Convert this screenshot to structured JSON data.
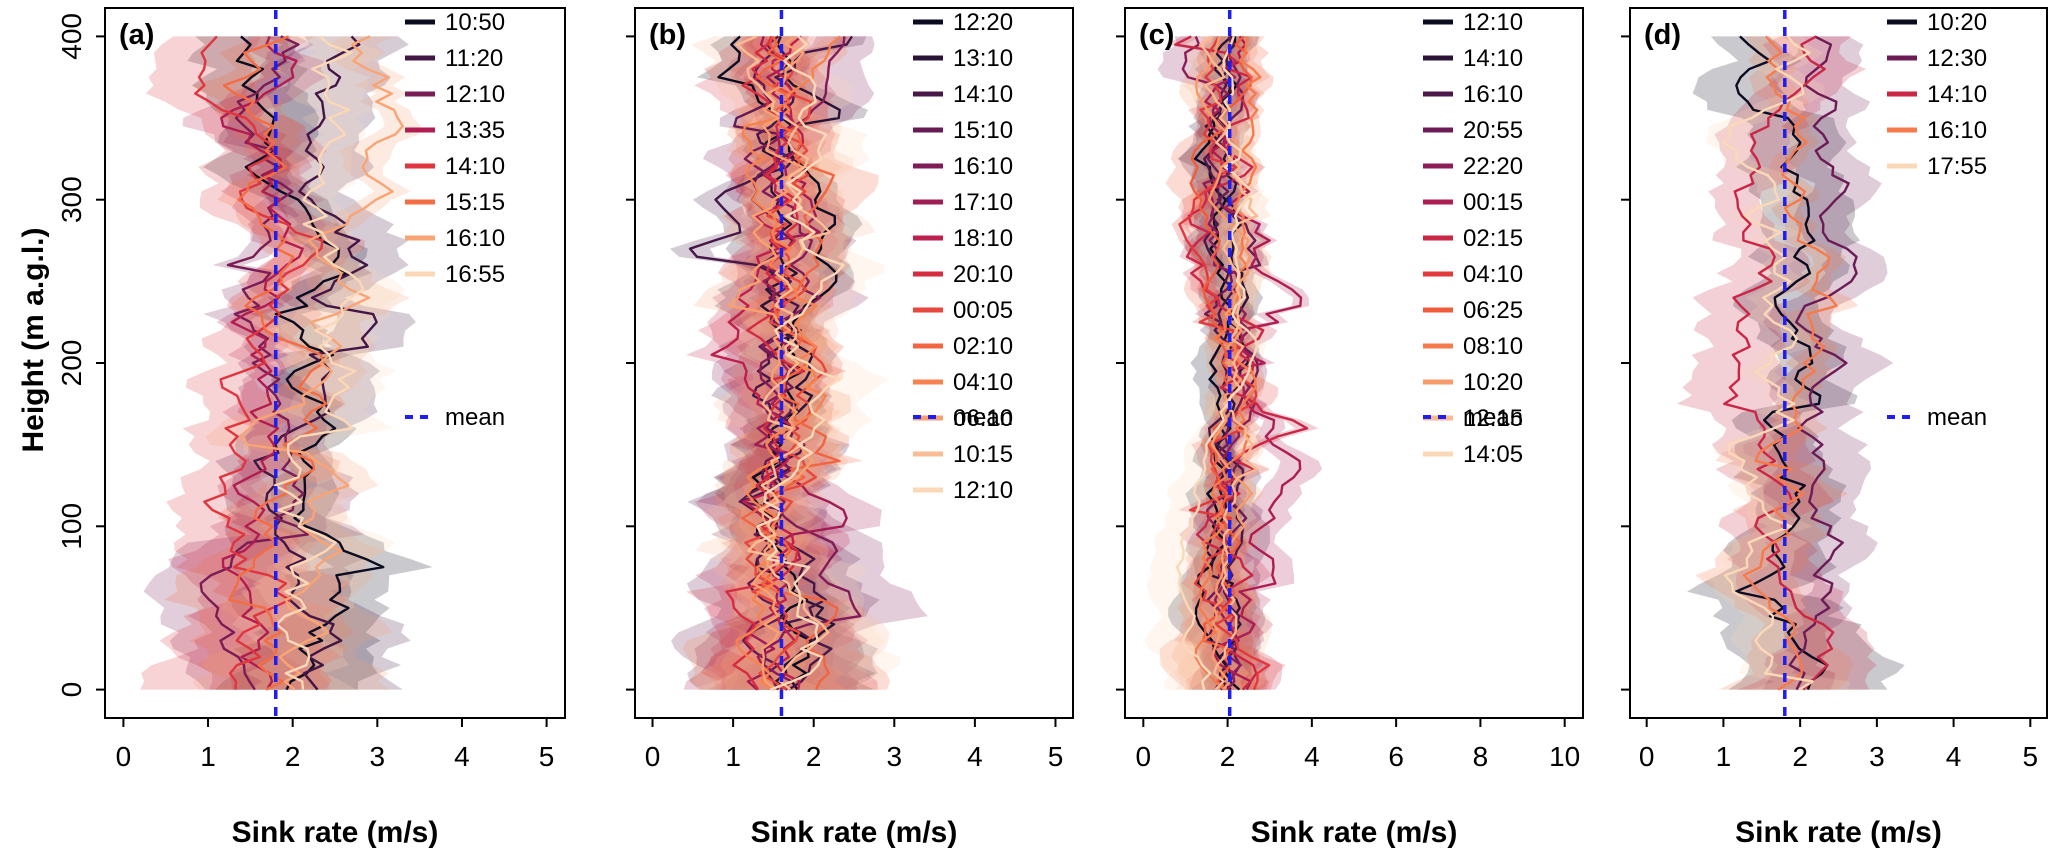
{
  "figure": {
    "ylabel": "Height (m a.g.l.)",
    "xlabel": "Sink rate (m/s)",
    "mean_label": "mean",
    "mean_color": "#1E1EF0",
    "palette": [
      "#0B0B21",
      "#35153F",
      "#611A53",
      "#8C1D59",
      "#B71D4E",
      "#DC2F3E",
      "#F05B3B",
      "#F68651",
      "#F9B084",
      "#FBD8B8"
    ],
    "ylim": [
      0,
      400
    ],
    "yticks": [
      0,
      100,
      200,
      300,
      400
    ]
  },
  "chart_data": [
    {
      "type": "line",
      "panel_label": "(a)",
      "xlabel": "Sink rate (m/s)",
      "ylabel": "Height (m a.g.l.)",
      "xlim": [
        0,
        5
      ],
      "xticks": [
        0,
        1,
        2,
        3,
        4,
        5
      ],
      "mean": 1.8,
      "legend_position": "top-right",
      "series": [
        {
          "name": "10:50",
          "base": 2.0,
          "wobble": 0.55
        },
        {
          "name": "11:20",
          "base": 2.2,
          "wobble": 0.6
        },
        {
          "name": "12:10",
          "base": 1.8,
          "wobble": 0.55
        },
        {
          "name": "13:35",
          "base": 1.7,
          "wobble": 0.55
        },
        {
          "name": "14:10",
          "base": 1.6,
          "wobble": 0.6
        },
        {
          "name": "15:15",
          "base": 1.8,
          "wobble": 0.6
        },
        {
          "name": "16:10",
          "base": 2.3,
          "wobble": 0.6,
          "drift": 1.0
        },
        {
          "name": "16:55",
          "base": 2.0,
          "wobble": 0.6,
          "drift": 0.5
        }
      ]
    },
    {
      "type": "line",
      "panel_label": "(b)",
      "xlabel": "Sink rate (m/s)",
      "ylabel": "Height (m a.g.l.)",
      "xlim": [
        0,
        5
      ],
      "xticks": [
        0,
        1,
        2,
        3,
        4,
        5
      ],
      "mean": 1.6,
      "legend_position": "top-right",
      "series": [
        {
          "name": "12:20",
          "base": 1.8,
          "wobble": 0.5
        },
        {
          "name": "13:10",
          "base": 1.7,
          "wobble": 0.5
        },
        {
          "name": "14:10",
          "base": 1.6,
          "wobble": 0.55
        },
        {
          "name": "15:10",
          "base": 1.5,
          "wobble": 0.5
        },
        {
          "name": "16:10",
          "base": 1.6,
          "wobble": 0.5
        },
        {
          "name": "17:10",
          "base": 1.5,
          "wobble": 0.5
        },
        {
          "name": "18:10",
          "base": 1.7,
          "wobble": 0.55
        },
        {
          "name": "20:10",
          "base": 1.4,
          "wobble": 0.5
        },
        {
          "name": "00:05",
          "base": 1.5,
          "wobble": 0.55
        },
        {
          "name": "02:10",
          "base": 1.6,
          "wobble": 0.5
        },
        {
          "name": "04:10",
          "base": 1.6,
          "wobble": 0.5
        },
        {
          "name": "06:10",
          "base": 1.5,
          "wobble": 0.5
        },
        {
          "name": "10:15",
          "base": 1.7,
          "wobble": 0.5
        },
        {
          "name": "12:10",
          "base": 1.8,
          "wobble": 0.55
        }
      ]
    },
    {
      "type": "line",
      "panel_label": "(c)",
      "xlabel": "Sink rate (m/s)",
      "ylabel": "Height (m a.g.l.)",
      "xlim": [
        0,
        10
      ],
      "xticks": [
        0,
        2,
        4,
        6,
        8,
        10
      ],
      "mean": 2.05,
      "legend_position": "top-right",
      "series": [
        {
          "name": "12:10",
          "base": 1.9,
          "wobble": 0.5
        },
        {
          "name": "14:10",
          "base": 2.0,
          "wobble": 0.55
        },
        {
          "name": "16:10",
          "base": 1.9,
          "wobble": 0.5
        },
        {
          "name": "20:55",
          "base": 2.1,
          "wobble": 0.6
        },
        {
          "name": "22:20",
          "base": 2.0,
          "wobble": 0.6
        },
        {
          "name": "00:15",
          "base": 2.4,
          "wobble": 1.0
        },
        {
          "name": "02:15",
          "base": 2.3,
          "wobble": 1.3
        },
        {
          "name": "04:10",
          "base": 2.3,
          "wobble": 0.9
        },
        {
          "name": "06:25",
          "base": 2.0,
          "wobble": 0.6
        },
        {
          "name": "08:10",
          "base": 2.1,
          "wobble": 0.6
        },
        {
          "name": "10:20",
          "base": 2.0,
          "wobble": 0.55
        },
        {
          "name": "12:15",
          "base": 1.9,
          "wobble": 0.55
        },
        {
          "name": "14:05",
          "base": 2.0,
          "wobble": 0.6
        }
      ]
    },
    {
      "type": "line",
      "panel_label": "(d)",
      "xlabel": "Sink rate (m/s)",
      "ylabel": "Height (m a.g.l.)",
      "xlim": [
        0,
        5
      ],
      "xticks": [
        0,
        1,
        2,
        3,
        4,
        5
      ],
      "mean": 1.8,
      "legend_position": "top-right",
      "series": [
        {
          "name": "10:20",
          "base": 1.9,
          "wobble": 0.5
        },
        {
          "name": "12:30",
          "base": 2.0,
          "wobble": 0.55
        },
        {
          "name": "14:10",
          "base": 1.8,
          "wobble": 0.5
        },
        {
          "name": "16:10",
          "base": 1.75,
          "wobble": 0.5
        },
        {
          "name": "17:55",
          "base": 1.7,
          "wobble": 0.7
        }
      ]
    }
  ]
}
